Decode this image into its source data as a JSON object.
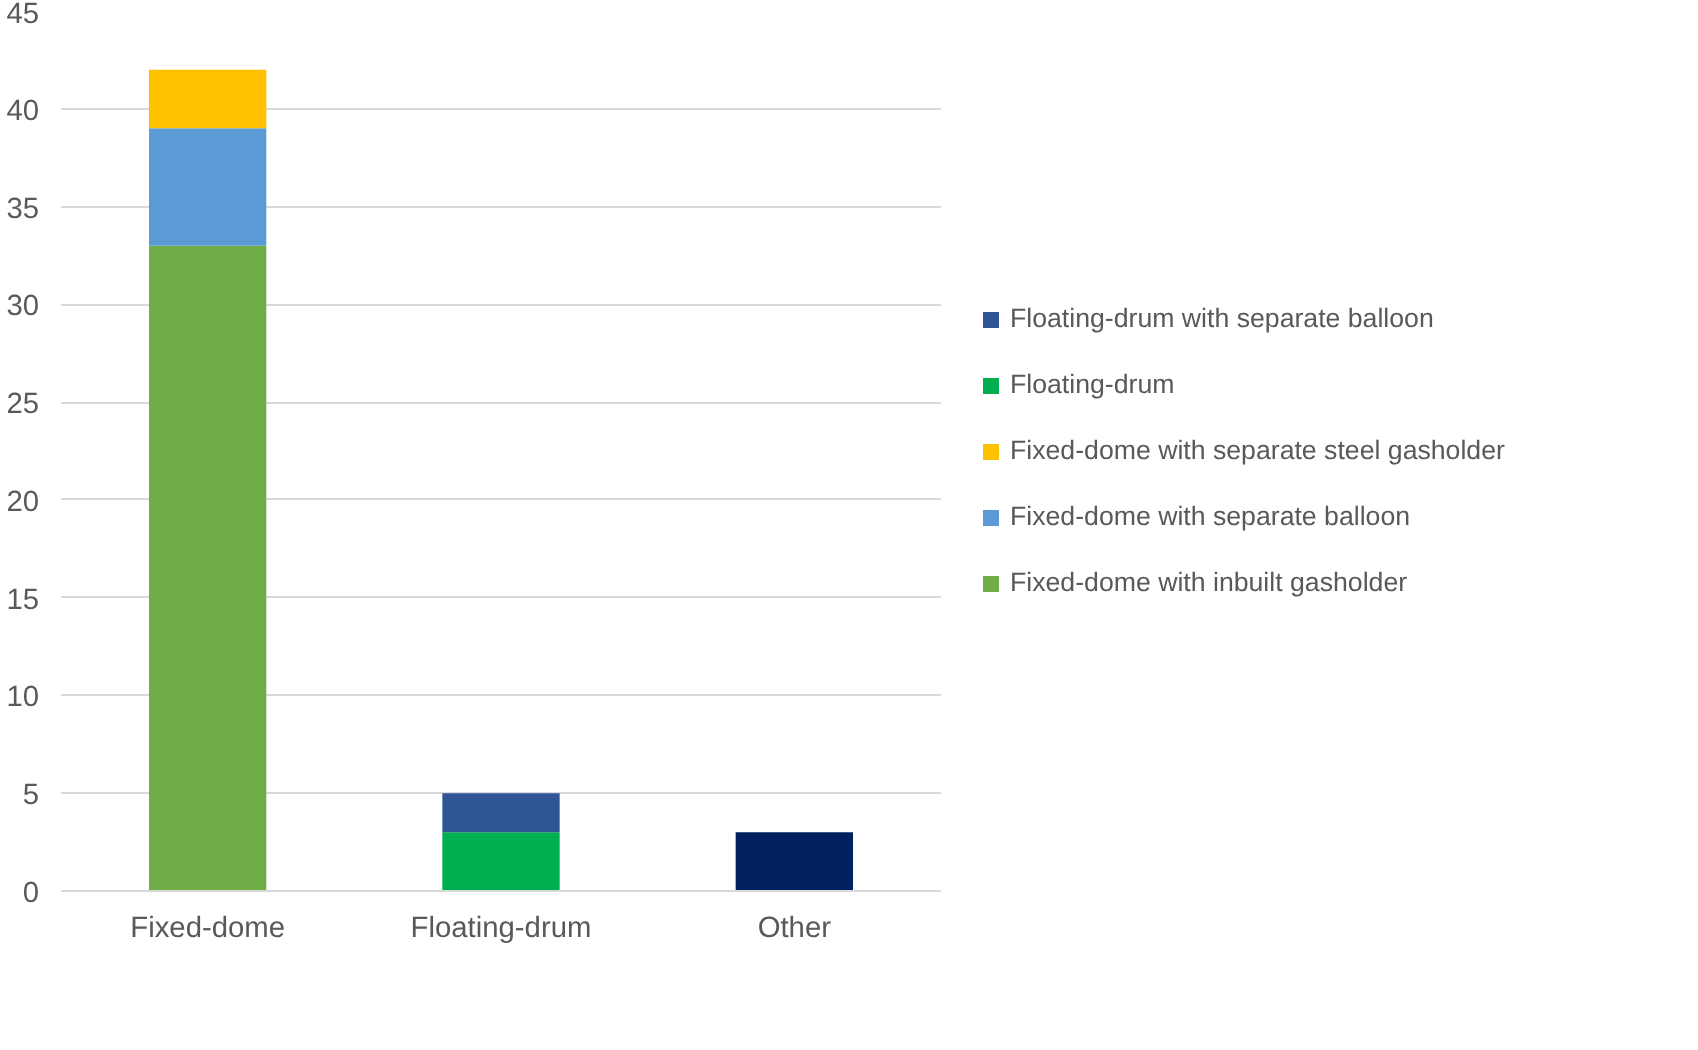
{
  "chart_data": {
    "type": "bar",
    "stacked": true,
    "categories": [
      "Fixed-dome",
      "Floating-drum",
      "Other"
    ],
    "series": [
      {
        "name": "Fixed-dome with inbuilt gasholder",
        "color": "#70ad47",
        "values": [
          33,
          null,
          null
        ]
      },
      {
        "name": "Fixed-dome with separate balloon",
        "color": "#5b9bd5",
        "values": [
          6,
          null,
          null
        ]
      },
      {
        "name": "Fixed-dome with separate steel gasholder",
        "color": "#ffc000",
        "values": [
          3,
          null,
          null
        ]
      },
      {
        "name": "Floating-drum",
        "color": "#00b050",
        "values": [
          null,
          3,
          null
        ]
      },
      {
        "name": "Floating-drum with separate balloon",
        "color": "#2f5597",
        "values": [
          null,
          2,
          null
        ]
      },
      {
        "color": "#002060",
        "values": [
          null,
          null,
          3
        ]
      }
    ],
    "ylim": [
      0,
      45
    ],
    "yticks": [
      0,
      5,
      10,
      15,
      20,
      25,
      30,
      35,
      40,
      45
    ],
    "grid": "y",
    "legend": "right"
  }
}
